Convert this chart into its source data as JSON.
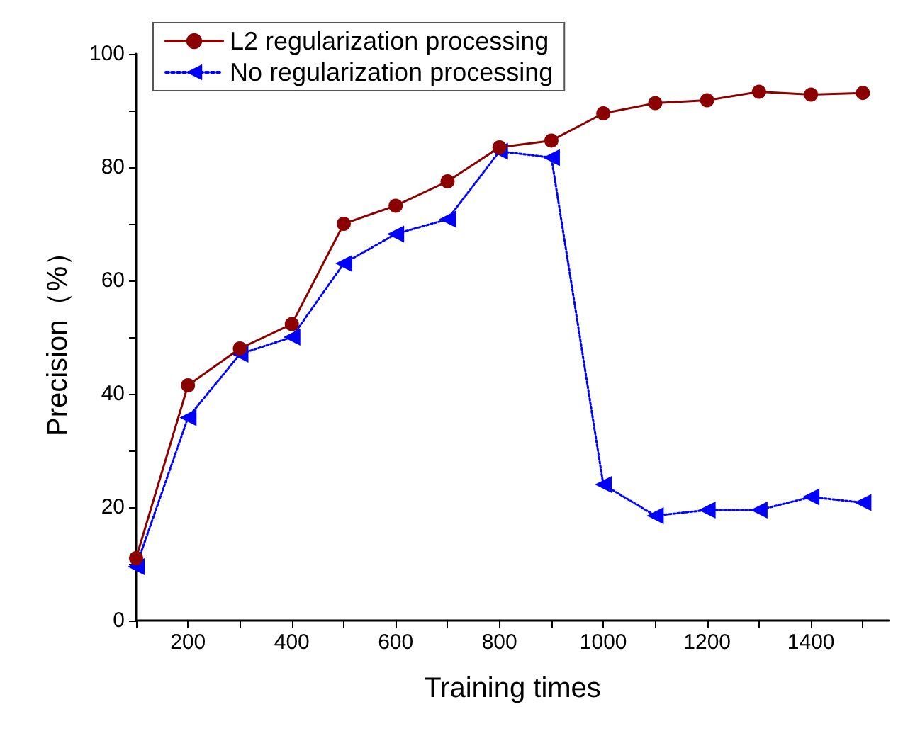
{
  "chart_data": {
    "type": "line",
    "xlabel": "Training times",
    "ylabel": "Precision（%）",
    "x": [
      100,
      200,
      300,
      400,
      500,
      600,
      700,
      800,
      900,
      1000,
      1100,
      1200,
      1300,
      1400,
      1500
    ],
    "series": [
      {
        "name": "L2 regularization processing",
        "color": "#8b0000",
        "marker": "circle",
        "line_style": "solid",
        "values": [
          11,
          41.5,
          48,
          52.3,
          70,
          73.2,
          77.5,
          83.5,
          84.7,
          89.5,
          91.3,
          91.8,
          93.3,
          92.8,
          93.1
        ]
      },
      {
        "name": "No regularization processing",
        "color": "#0000ff",
        "marker": "triangle",
        "line_style": "dotted",
        "values": [
          9.5,
          35.8,
          47,
          50,
          63,
          68.2,
          70.8,
          82.8,
          81.7,
          24,
          18.5,
          19.5,
          19.5,
          21.8,
          20.8
        ]
      }
    ],
    "xlim": [
      100,
      1550
    ],
    "ylim": [
      0,
      100
    ],
    "xticks": [
      {
        "value": 100,
        "label": null
      },
      200,
      {
        "value": 300,
        "label": null
      },
      400,
      {
        "value": 500,
        "label": null
      },
      600,
      {
        "value": 700,
        "label": null
      },
      800,
      {
        "value": 900,
        "label": null
      },
      1000,
      {
        "value": 1100,
        "label": null
      },
      1200,
      {
        "value": 1300,
        "label": null
      },
      1400,
      {
        "value": 1500,
        "label": null
      }
    ],
    "yticks": [
      0,
      {
        "value": 10,
        "label": null
      },
      20,
      {
        "value": 30,
        "label": null
      },
      40,
      {
        "value": 50,
        "label": null
      },
      60,
      {
        "value": 70,
        "label": null
      },
      80,
      {
        "value": 90,
        "label": null
      },
      100
    ],
    "grid": false,
    "legend": "top left"
  }
}
